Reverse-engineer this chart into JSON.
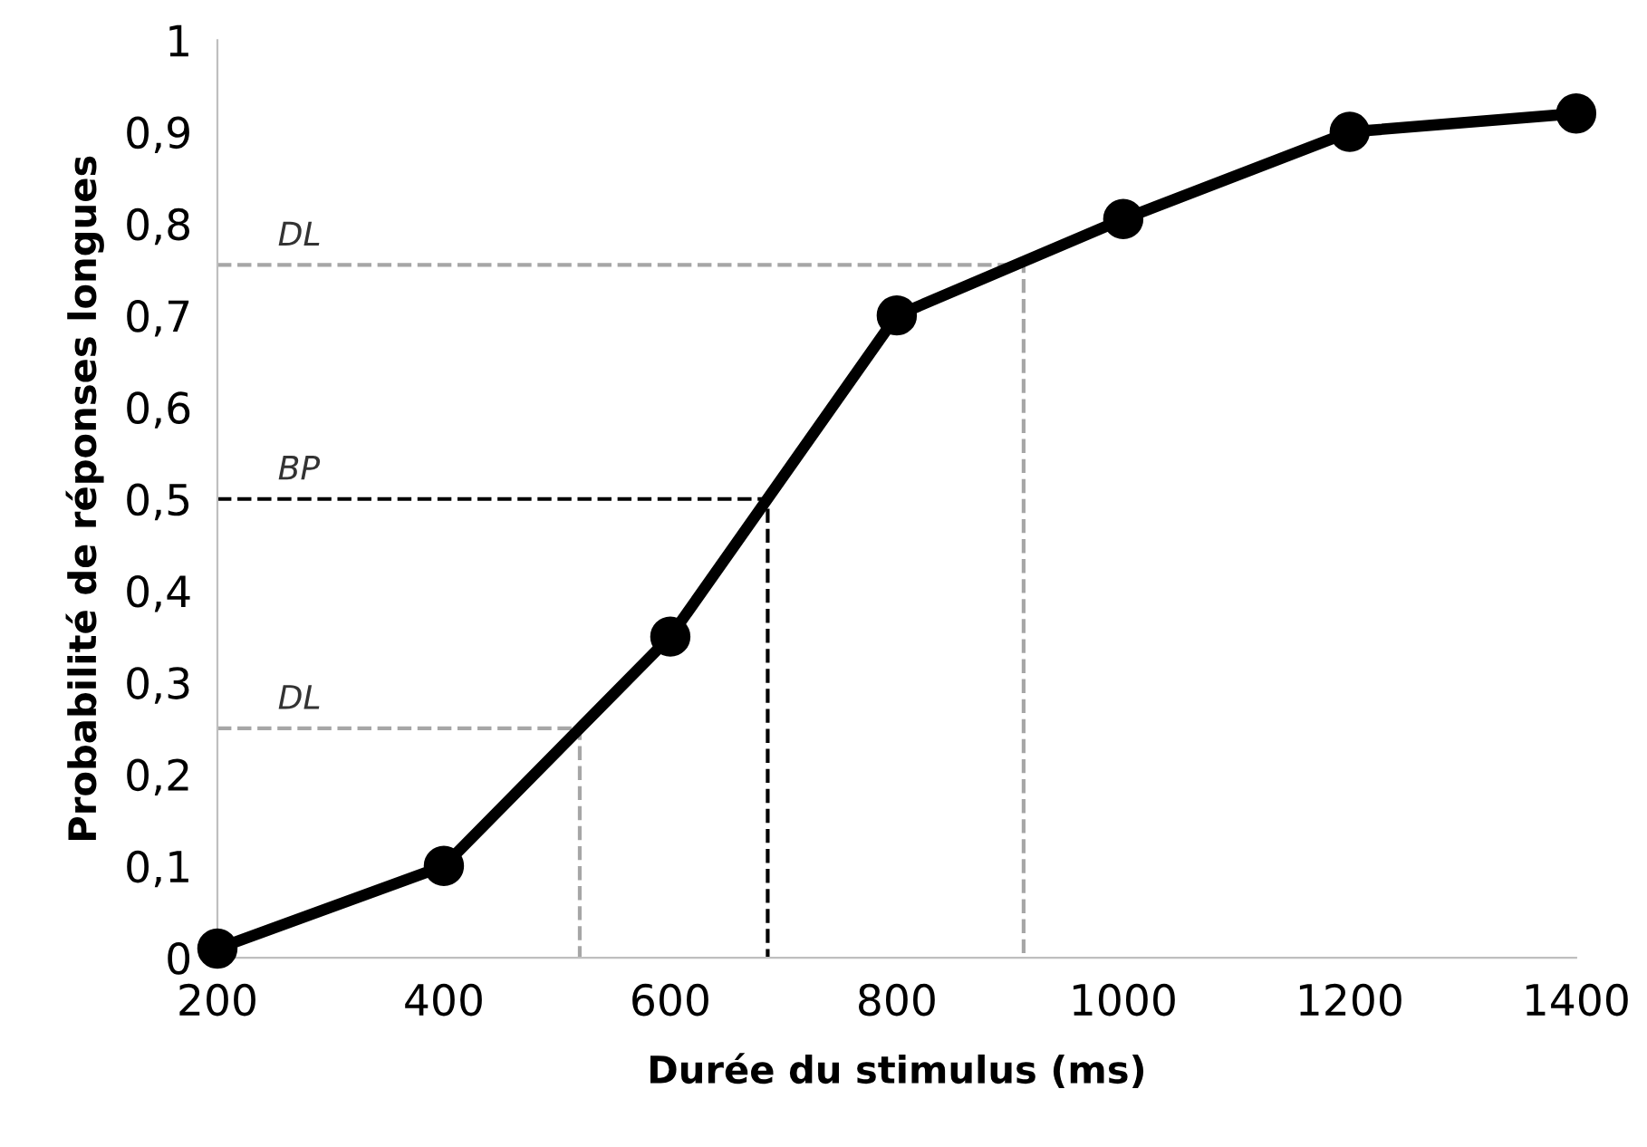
{
  "chart_data": {
    "type": "line",
    "xlabel": "Durée du stimulus (ms)",
    "ylabel": "Probabilité de réponses longues",
    "xlim": [
      200,
      1400
    ],
    "xticks": [
      200,
      400,
      600,
      800,
      1000,
      1200,
      1400
    ],
    "ylim": [
      0,
      1
    ],
    "yticks": [
      0,
      {
        "value": 0.1,
        "label": "0,1"
      },
      {
        "value": 0.2,
        "label": "0,2"
      },
      {
        "value": 0.3,
        "label": "0,3"
      },
      {
        "value": 0.4,
        "label": "0,4"
      },
      {
        "value": 0.5,
        "label": "0,5"
      },
      {
        "value": 0.6,
        "label": "0,6"
      },
      {
        "value": 0.7,
        "label": "0,7"
      },
      {
        "value": 0.8,
        "label": "0,8"
      },
      {
        "value": 0.9,
        "label": "0,9"
      },
      1
    ],
    "grid": false,
    "legend": false,
    "series": [
      {
        "x": [
          200,
          520,
          520
        ],
        "values": [
          0.25,
          0.25,
          0
        ],
        "color": "#a6a6a6",
        "line_style": "dashed",
        "marker": "none"
      },
      {
        "x": [
          200,
          686,
          686
        ],
        "values": [
          0.5,
          0.5,
          0
        ],
        "color": "#000000",
        "line_style": "dashed",
        "marker": "none"
      },
      {
        "x": [
          200,
          912,
          912
        ],
        "values": [
          0.755,
          0.755,
          0
        ],
        "color": "#a6a6a6",
        "line_style": "dashed",
        "marker": "none"
      },
      {
        "x": [
          200,
          400,
          600,
          800,
          1000,
          1200,
          1400
        ],
        "values": [
          0.01,
          0.1,
          0.35,
          0.7,
          0.805,
          0.9,
          0.92
        ],
        "color": "#000000",
        "line_style": "solid",
        "marker": "circle"
      }
    ],
    "annotations": [
      {
        "text": "DL",
        "y": 0.25
      },
      {
        "text": "BP",
        "y": 0.5
      },
      {
        "text": "DL",
        "y": 0.755
      }
    ]
  }
}
